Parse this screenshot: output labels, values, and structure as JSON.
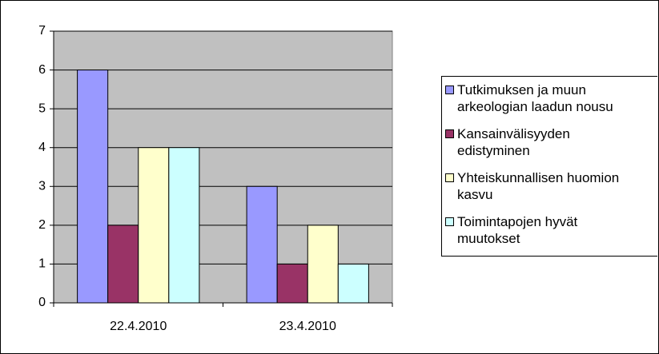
{
  "chart_data": {
    "type": "bar",
    "categories": [
      "22.4.2010",
      "23.4.2010"
    ],
    "series": [
      {
        "name": "Tutkimuksen ja muun arkeologian laadun nousu",
        "color": "#9999ff",
        "values": [
          6,
          3
        ]
      },
      {
        "name": "Kansainvälisyyden edistyminen",
        "color": "#993366",
        "values": [
          2,
          1
        ]
      },
      {
        "name": "Yhteiskunnallisen huomion kasvu",
        "color": "#ffffcc",
        "values": [
          4,
          2
        ]
      },
      {
        "name": "Toimintapojen hyvät muutokset",
        "color": "#ccffff",
        "values": [
          4,
          1
        ]
      }
    ],
    "ylim": [
      0,
      7
    ],
    "yticks": [
      0,
      1,
      2,
      3,
      4,
      5,
      6,
      7
    ],
    "grid": true,
    "legend": "right"
  }
}
